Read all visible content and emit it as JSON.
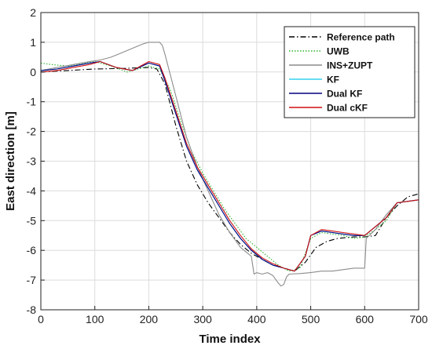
{
  "chart_data": {
    "type": "line",
    "xlabel": "Time index",
    "ylabel": "East direction [m]",
    "xlim": [
      0,
      700
    ],
    "ylim": [
      -8,
      2
    ],
    "xticks": [
      0,
      100,
      200,
      300,
      400,
      500,
      600,
      700
    ],
    "yticks": [
      -8,
      -7,
      -6,
      -5,
      -4,
      -3,
      -2,
      -1,
      0,
      1,
      2
    ],
    "grid": true,
    "legend_position": "top-right",
    "series": [
      {
        "name": "Reference path",
        "color": "#000000",
        "style": "dashdot",
        "x": [
          0,
          50,
          100,
          150,
          200,
          215,
          230,
          250,
          270,
          290,
          310,
          330,
          350,
          370,
          390,
          410,
          430,
          450,
          470,
          490,
          510,
          530,
          550,
          580,
          600,
          620,
          640,
          660,
          680,
          700
        ],
        "y": [
          0.0,
          0.05,
          0.1,
          0.12,
          0.15,
          0.1,
          -0.4,
          -1.8,
          -3.0,
          -3.8,
          -4.4,
          -4.9,
          -5.4,
          -5.8,
          -6.1,
          -6.3,
          -6.5,
          -6.6,
          -6.7,
          -6.4,
          -5.9,
          -5.7,
          -5.6,
          -5.55,
          -5.55,
          -5.5,
          -4.9,
          -4.5,
          -4.2,
          -4.1
        ]
      },
      {
        "name": "UWB",
        "color": "#2bb32b",
        "style": "dotted",
        "x": [
          0,
          20,
          50,
          80,
          100,
          130,
          160,
          200,
          220,
          240,
          260,
          280,
          300,
          320,
          340,
          360,
          380,
          400,
          420,
          440,
          460,
          480,
          500,
          520,
          540,
          560,
          580,
          600,
          620,
          640,
          660,
          680,
          700
        ],
        "y": [
          0.3,
          0.25,
          0.2,
          0.3,
          0.35,
          0.2,
          0.0,
          0.2,
          0.1,
          -0.6,
          -1.7,
          -2.7,
          -3.4,
          -4.0,
          -4.6,
          -5.1,
          -5.6,
          -5.9,
          -6.2,
          -6.5,
          -6.7,
          -6.6,
          -5.6,
          -5.4,
          -5.45,
          -5.5,
          -5.6,
          -5.55,
          -5.3,
          -5.0,
          -4.4,
          -4.35,
          -4.3
        ]
      },
      {
        "name": "INS+ZUPT",
        "color": "#8c8c8c",
        "style": "solid",
        "x": [
          0,
          30,
          60,
          90,
          110,
          130,
          150,
          170,
          190,
          200,
          220,
          225,
          230,
          250,
          270,
          290,
          310,
          330,
          350,
          370,
          390,
          395,
          400,
          410,
          420,
          430,
          440,
          445,
          450,
          455,
          460,
          480,
          500,
          520,
          540,
          560,
          580,
          600,
          603,
          620,
          640,
          660,
          680,
          700
        ],
        "y": [
          0.05,
          0.15,
          0.25,
          0.35,
          0.4,
          0.5,
          0.65,
          0.8,
          0.95,
          1.0,
          1.0,
          0.9,
          0.6,
          -0.8,
          -2.2,
          -3.2,
          -4.0,
          -4.8,
          -5.4,
          -5.9,
          -6.2,
          -6.8,
          -6.75,
          -6.8,
          -6.75,
          -6.85,
          -7.1,
          -7.2,
          -7.15,
          -6.9,
          -6.8,
          -6.78,
          -6.75,
          -6.7,
          -6.7,
          -6.65,
          -6.6,
          -6.6,
          -5.6,
          -5.3,
          -4.8,
          -4.4,
          -4.35,
          -4.3
        ]
      },
      {
        "name": "KF",
        "color": "#33d0ee",
        "style": "solid",
        "x": [
          0,
          30,
          60,
          90,
          110,
          140,
          170,
          200,
          220,
          230,
          250,
          270,
          290,
          310,
          330,
          350,
          370,
          390,
          410,
          430,
          450,
          470,
          490,
          500,
          520,
          540,
          560,
          580,
          600,
          620,
          640,
          660,
          680,
          700
        ],
        "y": [
          0.05,
          0.1,
          0.2,
          0.3,
          0.35,
          0.15,
          0.05,
          0.3,
          0.2,
          -0.3,
          -1.4,
          -2.5,
          -3.3,
          -3.9,
          -4.5,
          -5.1,
          -5.6,
          -6.0,
          -6.3,
          -6.5,
          -6.6,
          -6.7,
          -6.2,
          -5.5,
          -5.35,
          -5.4,
          -5.45,
          -5.5,
          -5.5,
          -5.2,
          -4.9,
          -4.4,
          -4.35,
          -4.3
        ]
      },
      {
        "name": "Dual KF",
        "color": "#000080",
        "style": "solid",
        "x": [
          0,
          30,
          60,
          90,
          110,
          140,
          170,
          200,
          220,
          230,
          250,
          270,
          290,
          310,
          330,
          350,
          370,
          390,
          410,
          430,
          450,
          470,
          490,
          500,
          520,
          540,
          560,
          580,
          600,
          620,
          640,
          660,
          680,
          700
        ],
        "y": [
          0.05,
          0.1,
          0.2,
          0.3,
          0.35,
          0.15,
          0.05,
          0.3,
          0.2,
          -0.3,
          -1.4,
          -2.5,
          -3.3,
          -3.9,
          -4.5,
          -5.1,
          -5.6,
          -6.0,
          -6.3,
          -6.5,
          -6.6,
          -6.7,
          -6.2,
          -5.5,
          -5.35,
          -5.4,
          -5.45,
          -5.5,
          -5.5,
          -5.2,
          -4.9,
          -4.4,
          -4.35,
          -4.3
        ]
      },
      {
        "name": "Dual cKF",
        "color": "#d01010",
        "style": "solid",
        "x": [
          0,
          30,
          60,
          90,
          110,
          140,
          170,
          200,
          220,
          230,
          250,
          270,
          290,
          310,
          330,
          350,
          370,
          390,
          410,
          430,
          450,
          470,
          490,
          500,
          520,
          540,
          560,
          580,
          600,
          620,
          640,
          660,
          680,
          700
        ],
        "y": [
          0.0,
          0.05,
          0.15,
          0.25,
          0.35,
          0.15,
          0.05,
          0.35,
          0.25,
          -0.2,
          -1.3,
          -2.4,
          -3.2,
          -3.8,
          -4.4,
          -5.0,
          -5.5,
          -5.95,
          -6.25,
          -6.45,
          -6.6,
          -6.7,
          -6.2,
          -5.5,
          -5.3,
          -5.35,
          -5.4,
          -5.45,
          -5.5,
          -5.2,
          -4.9,
          -4.4,
          -4.35,
          -4.3
        ]
      }
    ]
  }
}
